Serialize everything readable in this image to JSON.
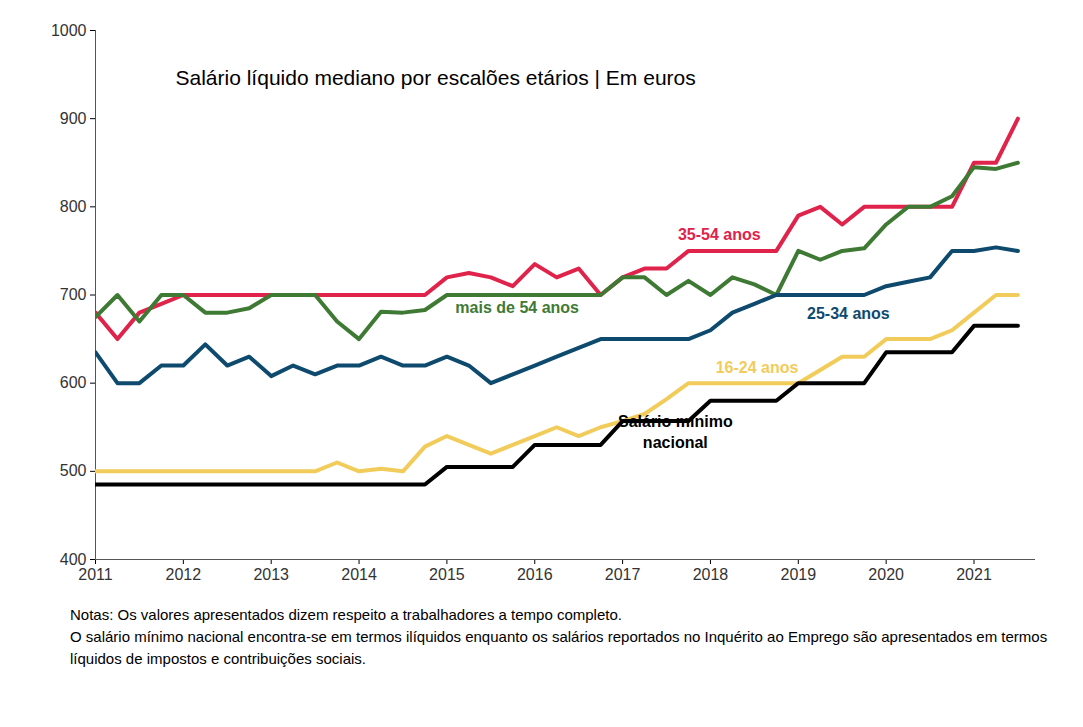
{
  "chart_data": {
    "type": "line",
    "title": "Salário líquido mediano por escalões etários | Em euros",
    "notes": [
      "Notas: Os valores apresentados dizem respeito a trabalhadores a tempo completo.",
      "O salário mínimo nacional encontra-se em termos ilíquidos enquanto os salários reportados no Inquérito ao Emprego são apresentados em termos líquidos de impostos e contribuições sociais."
    ],
    "x": [
      2011,
      2011.25,
      2011.5,
      2011.75,
      2012,
      2012.25,
      2012.5,
      2012.75,
      2013,
      2013.25,
      2013.5,
      2013.75,
      2014,
      2014.25,
      2014.5,
      2014.75,
      2015,
      2015.25,
      2015.5,
      2015.75,
      2016,
      2016.25,
      2016.5,
      2016.75,
      2017,
      2017.25,
      2017.5,
      2017.75,
      2018,
      2018.25,
      2018.5,
      2018.75,
      2019,
      2019.25,
      2019.5,
      2019.75,
      2020,
      2020.25,
      2020.5,
      2020.75,
      2021,
      2021.25,
      2021.5
    ],
    "series": [
      {
        "name": "35-54 anos",
        "color": "#e0234a",
        "values": [
          680,
          650,
          680,
          690,
          700,
          700,
          700,
          700,
          700,
          700,
          700,
          700,
          700,
          700,
          700,
          700,
          720,
          725,
          720,
          710,
          735,
          720,
          730,
          700,
          720,
          730,
          730,
          750,
          750,
          750,
          750,
          750,
          790,
          800,
          780,
          800,
          800,
          800,
          800,
          800,
          850,
          850,
          900
        ]
      },
      {
        "name": "mais de 54 anos",
        "color": "#3f7a35",
        "values": [
          675,
          700,
          670,
          700,
          700,
          680,
          680,
          685,
          700,
          700,
          700,
          670,
          650,
          681,
          680,
          683,
          700,
          700,
          700,
          700,
          700,
          700,
          700,
          700,
          720,
          720,
          700,
          716,
          700,
          720,
          712,
          700,
          750,
          740,
          750,
          753,
          780,
          800,
          800,
          812,
          845,
          843,
          850
        ]
      },
      {
        "name": "25-34 anos",
        "color": "#0d4a6e",
        "values": [
          635,
          600,
          600,
          620,
          620,
          644,
          620,
          630,
          608,
          620,
          610,
          620,
          620,
          630,
          620,
          620,
          630,
          620,
          600,
          610,
          620,
          630,
          640,
          650,
          650,
          650,
          650,
          650,
          660,
          680,
          690,
          700,
          700,
          700,
          700,
          700,
          710,
          715,
          720,
          750,
          750,
          754,
          750
        ]
      },
      {
        "name": "16-24 anos",
        "color": "#f2cc5a",
        "values": [
          500,
          500,
          500,
          500,
          500,
          500,
          500,
          500,
          500,
          500,
          500,
          510,
          500,
          503,
          500,
          528,
          540,
          530,
          520,
          530,
          540,
          550,
          540,
          550,
          557,
          565,
          582,
          600,
          600,
          600,
          600,
          600,
          600,
          615,
          630,
          630,
          650,
          650,
          650,
          660,
          680,
          700,
          700
        ]
      },
      {
        "name": "Salário mínimo nacional",
        "color": "#000000",
        "values": [
          485,
          485,
          485,
          485,
          485,
          485,
          485,
          485,
          485,
          485,
          485,
          485,
          485,
          485,
          485,
          485,
          505,
          505,
          505,
          505,
          530,
          530,
          530,
          530,
          557,
          557,
          557,
          557,
          580,
          580,
          580,
          580,
          600,
          600,
          600,
          600,
          635,
          635,
          635,
          635,
          665,
          665,
          665
        ]
      }
    ],
    "xlim": [
      2011,
      2021.7
    ],
    "xticks": [
      2011,
      2012,
      2013,
      2014,
      2015,
      2016,
      2017,
      2018,
      2019,
      2020,
      2021
    ],
    "ylim": [
      400,
      1000
    ],
    "yticks": [
      400,
      500,
      600,
      700,
      800,
      900,
      1000
    ],
    "grid": false
  }
}
